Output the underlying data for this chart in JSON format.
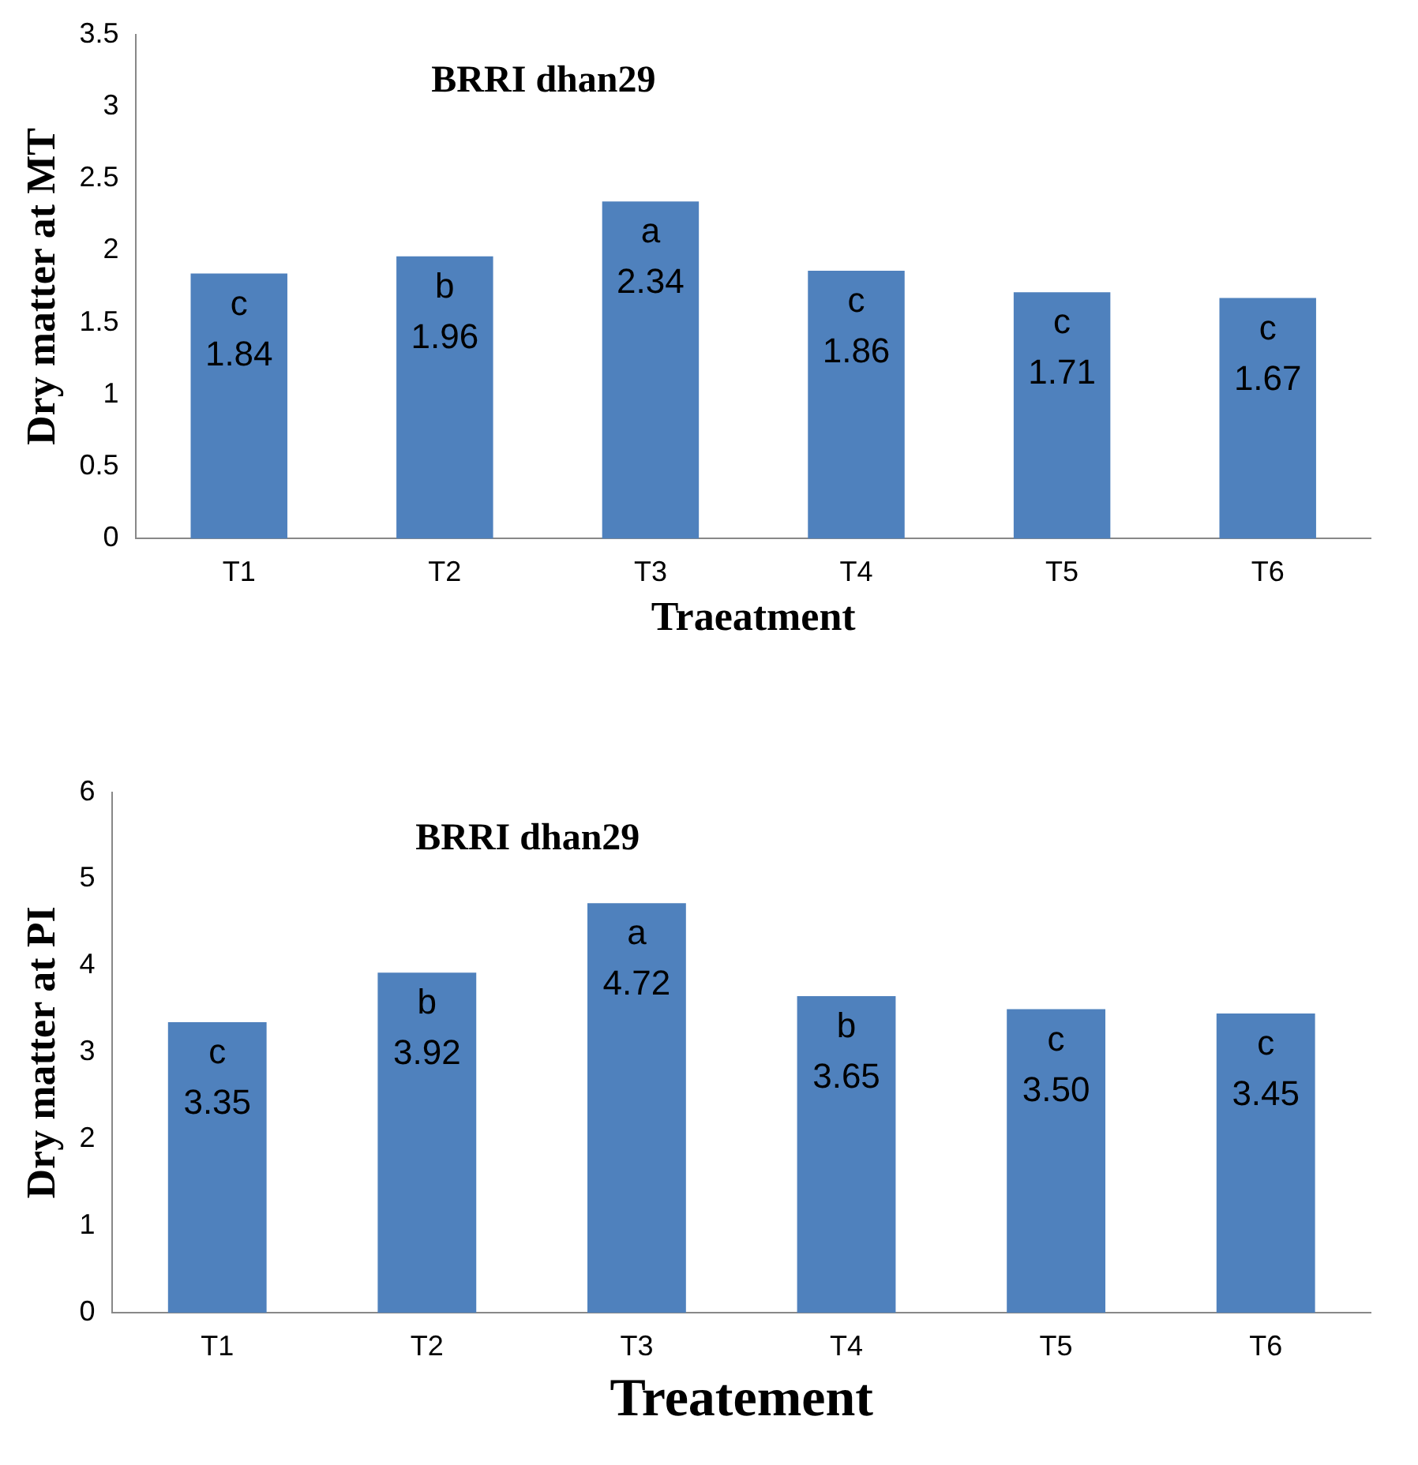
{
  "chart_data": [
    {
      "type": "bar",
      "title": "BRRI dhan29",
      "xlabel": "Traeatment",
      "ylabel": "Dry matter at MT",
      "categories": [
        "T1",
        "T2",
        "T3",
        "T4",
        "T5",
        "T6"
      ],
      "values": [
        1.84,
        1.96,
        2.34,
        1.86,
        1.71,
        1.67
      ],
      "color": "#4f81bd",
      "ylim": [
        0,
        3.5
      ],
      "yticks": [
        0,
        0.5,
        1,
        1.5,
        2,
        2.5,
        3,
        3.5
      ],
      "grid": false,
      "legend": false,
      "data_labels": true,
      "annotations": [
        {
          "text": "c",
          "x": "T1",
          "y": 1.84
        },
        {
          "text": "b",
          "x": "T2",
          "y": 1.96
        },
        {
          "text": "a",
          "x": "T3",
          "y": 2.34
        },
        {
          "text": "c",
          "x": "T4",
          "y": 1.86
        },
        {
          "text": "c",
          "x": "T5",
          "y": 1.71
        },
        {
          "text": "c",
          "x": "T6",
          "y": 1.67
        }
      ]
    },
    {
      "type": "bar",
      "title": "BRRI dhan29",
      "xlabel": "Treatement",
      "ylabel": "Dry matter at PI",
      "categories": [
        "T1",
        "T2",
        "T3",
        "T4",
        "T5",
        "T6"
      ],
      "values": [
        3.35,
        3.92,
        4.72,
        3.65,
        3.5,
        3.45
      ],
      "value_labels": [
        "3.35",
        "3.92",
        "4.72",
        "3.65",
        "3.50",
        "3.45"
      ],
      "color": "#4f81bd",
      "ylim": [
        0,
        6
      ],
      "yticks": [
        0,
        1,
        2,
        3,
        4,
        5,
        6
      ],
      "grid": false,
      "legend": false,
      "annotations": [
        {
          "text": "c",
          "x": "T1",
          "y": 3.35
        },
        {
          "text": "b",
          "x": "T2",
          "y": 3.92
        },
        {
          "text": "a",
          "x": "T3",
          "y": 4.72
        },
        {
          "text": "b",
          "x": "T4",
          "y": 3.65
        },
        {
          "text": "c",
          "x": "T5",
          "y": 3.5
        },
        {
          "text": "c",
          "x": "T6",
          "y": 3.45
        }
      ]
    }
  ]
}
